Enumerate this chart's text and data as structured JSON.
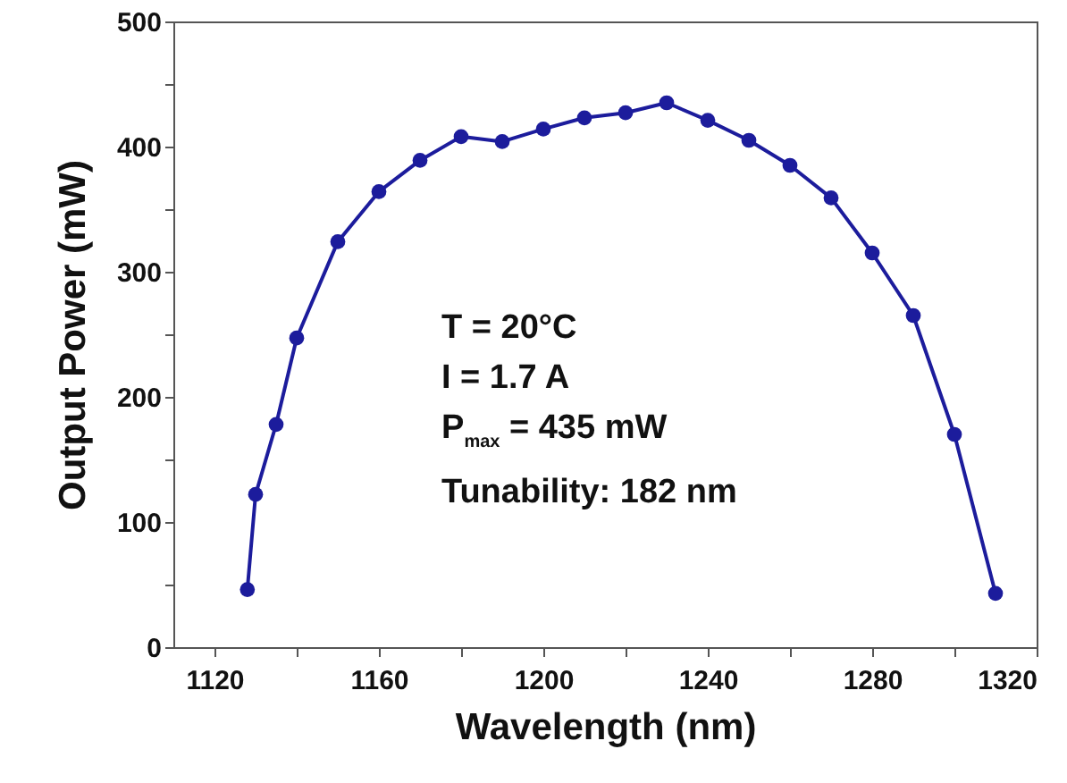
{
  "chart_data": {
    "type": "line",
    "xlabel": "Wavelength (nm)",
    "ylabel": "Output Power (mW)",
    "x": [
      1128,
      1130,
      1135,
      1140,
      1150,
      1160,
      1170,
      1180,
      1190,
      1200,
      1210,
      1220,
      1230,
      1240,
      1250,
      1260,
      1270,
      1280,
      1290,
      1300,
      1310
    ],
    "series": [
      {
        "color": "#1c1c9c",
        "values": [
          46,
          122,
          178,
          247,
          324,
          364,
          389,
          408,
          404,
          414,
          423,
          427,
          435,
          421,
          405,
          385,
          359,
          315,
          265,
          170,
          43
        ]
      }
    ],
    "xlim": [
      1110,
      1320
    ],
    "xticks": [
      {
        "value": 1120,
        "label": "1120"
      },
      {
        "value": 1140,
        "label": null
      },
      {
        "value": 1160,
        "label": "1160"
      },
      {
        "value": 1180,
        "label": null
      },
      {
        "value": 1200,
        "label": "1200"
      },
      {
        "value": 1220,
        "label": null
      },
      {
        "value": 1240,
        "label": "1240"
      },
      {
        "value": 1260,
        "label": null
      },
      {
        "value": 1280,
        "label": "1280"
      },
      {
        "value": 1300,
        "label": null
      },
      {
        "value": 1320,
        "label": "1320"
      }
    ],
    "ylim": [
      0,
      500
    ],
    "yticks": [
      0,
      {
        "value": 50,
        "label": null
      },
      100,
      {
        "value": 150,
        "label": null
      },
      200,
      {
        "value": 250,
        "label": null
      },
      300,
      {
        "value": 350,
        "label": null
      },
      400,
      {
        "value": 450,
        "label": null
      },
      500
    ],
    "marker": "circle",
    "line_style": "solid",
    "grid": false,
    "annotations": [
      "T = 20°C",
      "I = 1.7 A",
      "P$_{max}$ = 435 mW",
      "Tunability: 182 nm"
    ]
  }
}
